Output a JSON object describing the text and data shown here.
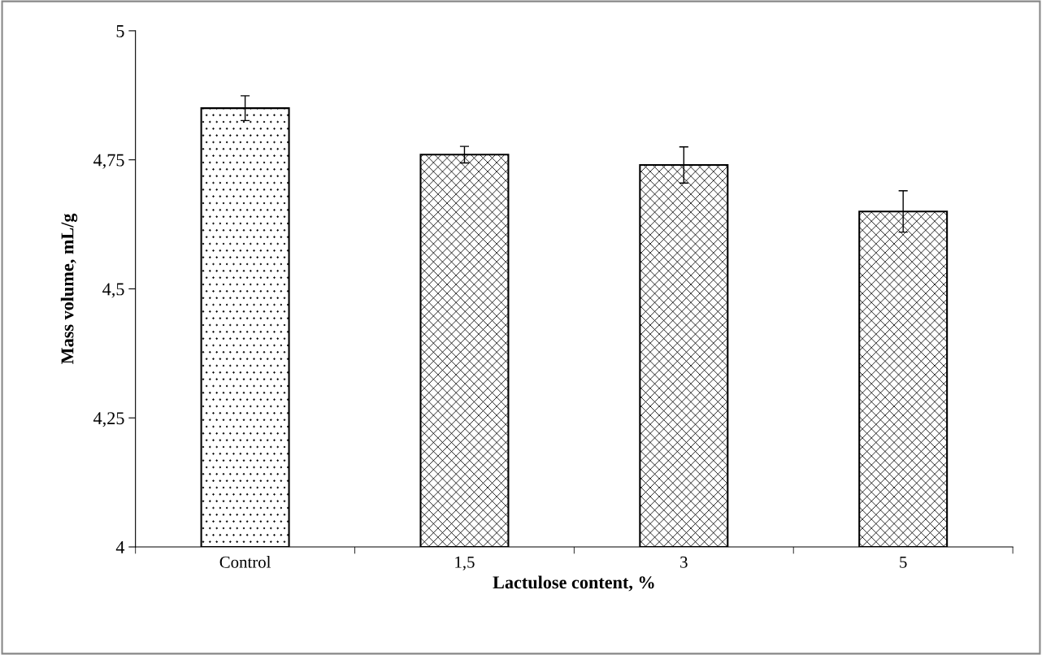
{
  "chart_data": {
    "type": "bar",
    "xlabel": "Lactulose content, %",
    "ylabel": "Mass volume, mL/g",
    "categories": [
      "Control",
      "1,5",
      "3",
      "5"
    ],
    "values": [
      4.85,
      4.76,
      4.74,
      4.65
    ],
    "errors": [
      0.024,
      0.016,
      0.035,
      0.04
    ],
    "ylim": [
      4,
      5
    ],
    "yticks": [
      {
        "value": 4,
        "label": "4"
      },
      {
        "value": 4.25,
        "label": "4,25"
      },
      {
        "value": 4.5,
        "label": "4,5"
      },
      {
        "value": 4.75,
        "label": "4,75"
      },
      {
        "value": 5,
        "label": "5"
      }
    ],
    "grid": false,
    "legend": false
  }
}
